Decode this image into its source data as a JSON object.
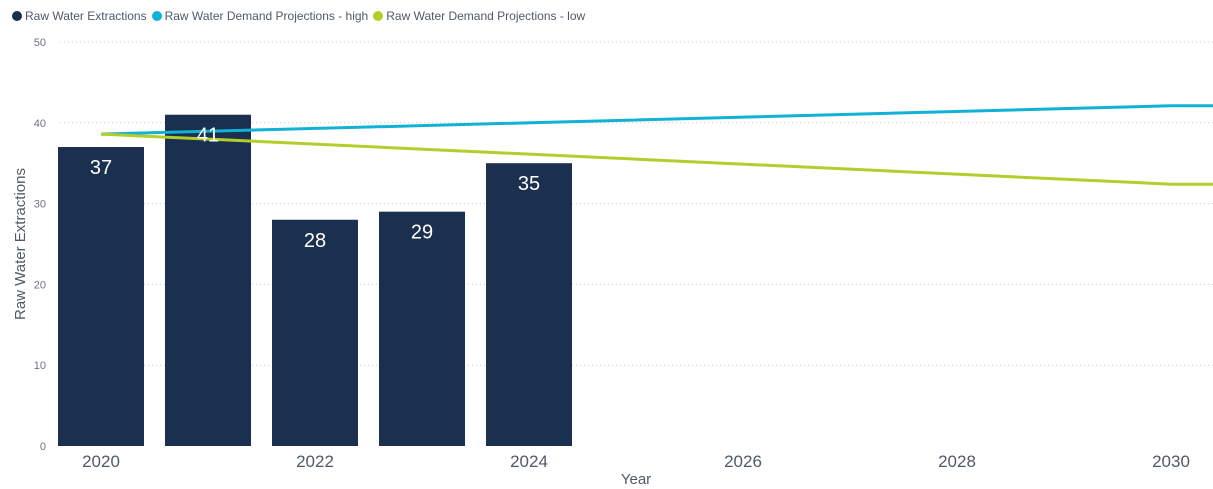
{
  "legend": {
    "items": [
      {
        "label": "Raw Water Extractions",
        "color": "#1b2f4e"
      },
      {
        "label": "Raw Water Demand Projections - high",
        "color": "#12b1d6"
      },
      {
        "label": "Raw Water Demand Projections - low",
        "color": "#b3cd2c"
      }
    ]
  },
  "chart_data": {
    "type": "bar+line",
    "xlabel": "Year",
    "ylabel": "Raw Water Extractions",
    "ylim": [
      0,
      50
    ],
    "y_ticks": [
      0,
      10,
      20,
      30,
      40,
      50
    ],
    "x_ticks": [
      2020,
      2022,
      2024,
      2026,
      2028,
      2030
    ],
    "grid": true,
    "legend_position": "top-left",
    "bars": {
      "name": "Raw Water Extractions",
      "color": "#1b2f4e",
      "x": [
        2020,
        2021,
        2022,
        2023,
        2024
      ],
      "values": [
        37,
        41,
        28,
        29,
        35
      ]
    },
    "lines": [
      {
        "name": "Raw Water Demand Projections - high",
        "color": "#12b1d6",
        "x": [
          2020,
          2030,
          2030.5
        ],
        "values": [
          38.6,
          42.1,
          42.1
        ]
      },
      {
        "name": "Raw Water Demand Projections - low",
        "color": "#b3cd2c",
        "x": [
          2020,
          2030,
          2030.5
        ],
        "values": [
          38.6,
          32.4,
          32.4
        ]
      }
    ]
  }
}
